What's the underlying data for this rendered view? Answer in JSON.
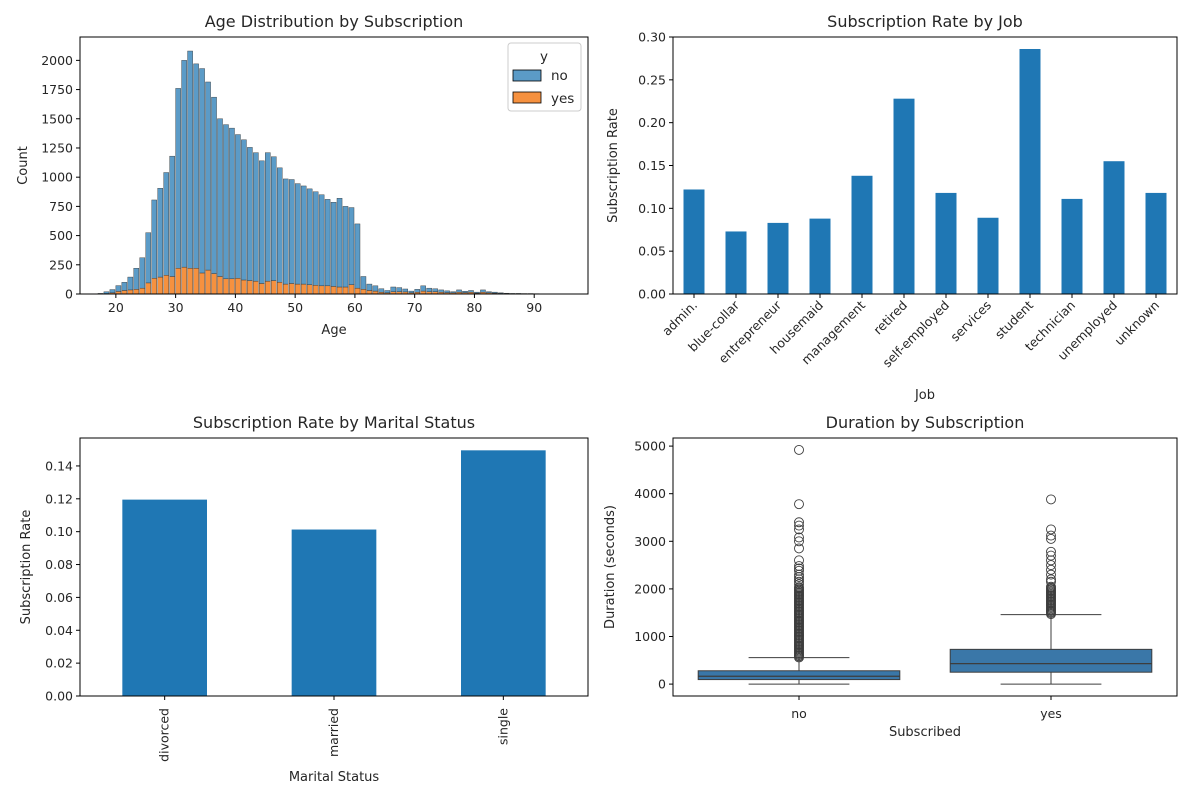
{
  "chart_data": [
    {
      "id": "age",
      "type": "bar",
      "stacked": true,
      "title": "Age Distribution by Subscription",
      "xlabel": "Age",
      "ylabel": "Count",
      "xlim": [
        14,
        99
      ],
      "ylim": [
        0,
        2200
      ],
      "xticks": [
        20,
        30,
        40,
        50,
        60,
        70,
        80,
        90
      ],
      "yticks": [
        0,
        250,
        500,
        750,
        1000,
        1250,
        1500,
        1750,
        2000
      ],
      "legend": {
        "title": "y",
        "position": "top-right"
      },
      "colors": {
        "no": "#5b9bc7",
        "yes": "#f6913f"
      },
      "bin_width": 0.85,
      "bins": [
        17,
        18,
        19,
        20,
        21,
        22,
        23,
        24,
        25,
        26,
        27,
        28,
        29,
        30,
        31,
        32,
        33,
        34,
        35,
        36,
        37,
        38,
        39,
        40,
        41,
        42,
        43,
        44,
        45,
        46,
        47,
        48,
        49,
        50,
        51,
        52,
        53,
        54,
        55,
        56,
        57,
        58,
        59,
        60,
        61,
        62,
        63,
        64,
        65,
        66,
        67,
        68,
        69,
        70,
        71,
        72,
        73,
        74,
        75,
        76,
        77,
        78,
        79,
        80,
        81,
        82,
        83,
        84,
        85,
        86,
        87,
        88,
        89,
        90,
        91,
        92,
        93,
        94,
        95
      ],
      "series": [
        {
          "name": "no",
          "values": [
            5,
            15,
            28,
            50,
            70,
            110,
            180,
            260,
            430,
            670,
            760,
            880,
            1030,
            1540,
            1770,
            1860,
            1750,
            1750,
            1610,
            1510,
            1350,
            1320,
            1290,
            1230,
            1200,
            1140,
            1100,
            1050,
            1100,
            1060,
            980,
            900,
            890,
            860,
            840,
            820,
            800,
            780,
            740,
            720,
            760,
            690,
            660,
            550,
            110,
            55,
            45,
            30,
            20,
            40,
            35,
            25,
            15,
            25,
            45,
            30,
            25,
            20,
            15,
            10,
            20,
            12,
            15,
            8,
            20,
            10,
            8,
            5,
            4,
            3,
            3,
            2,
            2,
            2,
            1,
            1,
            1,
            1,
            1
          ]
        },
        {
          "name": "yes",
          "values": [
            0,
            4,
            10,
            22,
            30,
            35,
            40,
            50,
            95,
            135,
            145,
            160,
            150,
            220,
            230,
            220,
            220,
            180,
            205,
            175,
            150,
            130,
            130,
            135,
            120,
            115,
            110,
            90,
            110,
            115,
            100,
            85,
            90,
            85,
            85,
            80,
            75,
            70,
            70,
            65,
            60,
            60,
            80,
            50,
            40,
            30,
            25,
            15,
            10,
            20,
            20,
            18,
            10,
            15,
            25,
            20,
            20,
            15,
            12,
            10,
            15,
            12,
            15,
            8,
            15,
            10,
            8,
            5,
            3,
            2,
            2,
            2,
            2,
            1,
            1,
            1,
            1,
            1,
            1
          ]
        }
      ]
    },
    {
      "id": "job",
      "type": "bar",
      "title": "Subscription Rate by Job",
      "xlabel": "Job",
      "ylabel": "Subscription Rate",
      "ylim": [
        0,
        0.3
      ],
      "yticks": [
        "0.00",
        "0.05",
        "0.10",
        "0.15",
        "0.20",
        "0.25",
        "0.30"
      ],
      "color": "#1f77b4",
      "categories": [
        "admin.",
        "blue-collar",
        "entrepreneur",
        "housemaid",
        "management",
        "retired",
        "self-employed",
        "services",
        "student",
        "technician",
        "unemployed",
        "unknown"
      ],
      "values": [
        0.122,
        0.073,
        0.083,
        0.088,
        0.138,
        0.228,
        0.118,
        0.089,
        0.286,
        0.111,
        0.155,
        0.118
      ]
    },
    {
      "id": "marital",
      "type": "bar",
      "title": "Subscription Rate by Marital Status",
      "xlabel": "Marital Status",
      "ylabel": "Subscription Rate",
      "ylim": [
        0,
        0.157
      ],
      "yticks": [
        "0.00",
        "0.02",
        "0.04",
        "0.06",
        "0.08",
        "0.10",
        "0.12",
        "0.14"
      ],
      "color": "#1f77b4",
      "categories": [
        "divorced",
        "married",
        "single"
      ],
      "values": [
        0.1195,
        0.1013,
        0.1495
      ]
    },
    {
      "id": "duration",
      "type": "box",
      "title": "Duration by Subscription",
      "xlabel": "Subscribed",
      "ylabel": "Duration (seconds)",
      "ylim": [
        -250,
        5170
      ],
      "yticks": [
        0,
        1000,
        2000,
        3000,
        4000,
        5000
      ],
      "color": "#3a77a8",
      "categories": [
        "no",
        "yes"
      ],
      "boxes": [
        {
          "name": "no",
          "whisker_low": 0,
          "q1": 95,
          "median": 165,
          "q3": 280,
          "whisker_high": 555,
          "outlier_min": 560,
          "outlier_max": 2050,
          "outliers": [
            2100,
            2150,
            2200,
            2250,
            2300,
            2380,
            2430,
            2480,
            2600,
            2850,
            3000,
            3080,
            3250,
            3330,
            3400,
            3780,
            4920
          ]
        },
        {
          "name": "yes",
          "whisker_low": 0,
          "q1": 250,
          "median": 430,
          "q3": 730,
          "whisker_high": 1460,
          "outlier_min": 1470,
          "outlier_max": 2050,
          "outliers": [
            2150,
            2200,
            2300,
            2400,
            2500,
            2600,
            2700,
            2780,
            3050,
            3120,
            3250,
            3880
          ]
        }
      ]
    }
  ]
}
